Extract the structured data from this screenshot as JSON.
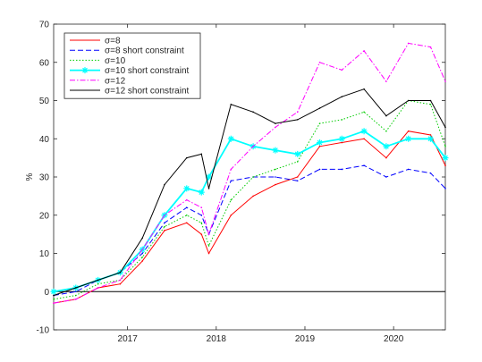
{
  "chart_data": {
    "type": "line",
    "title": "",
    "xlabel": "",
    "ylabel": "%",
    "xlim": [
      "2016-03",
      "2020-08"
    ],
    "ylim": [
      -10,
      70
    ],
    "yticks": [
      "-10",
      "0",
      "10",
      "20",
      "30",
      "40",
      "50",
      "60",
      "70"
    ],
    "xticks": [
      "2017",
      "2018",
      "2019",
      "2020"
    ],
    "grid": false,
    "legend_position": "top-left",
    "x": [
      "2016-03",
      "2016-06",
      "2016-09",
      "2016-12",
      "2017-03",
      "2017-06",
      "2017-09",
      "2017-11",
      "2017-12",
      "2018-03",
      "2018-06",
      "2018-09",
      "2018-12",
      "2019-03",
      "2019-06",
      "2019-09",
      "2019-12",
      "2020-03",
      "2020-06",
      "2020-08"
    ],
    "series": [
      {
        "name": "σ=8",
        "color": "#ff0000",
        "dash": "solid",
        "values": [
          -3,
          -2,
          1,
          2,
          8,
          16,
          18,
          15,
          10,
          20,
          25,
          28,
          30,
          38,
          39,
          40,
          35,
          42,
          41,
          33
        ]
      },
      {
        "name": "σ=8 short constraint",
        "color": "#0000ff",
        "dash": "dashed",
        "values": [
          -1,
          0,
          3,
          5,
          10,
          18,
          22,
          20,
          15,
          29,
          30,
          30,
          29,
          32,
          32,
          33,
          30,
          32,
          31,
          27
        ]
      },
      {
        "name": "σ=10",
        "color": "#00cc00",
        "dash": "dotted",
        "values": [
          -2,
          -1,
          2,
          3,
          9,
          17,
          20,
          18,
          12,
          24,
          30,
          32,
          34,
          44,
          45,
          47,
          42,
          50,
          49,
          38
        ]
      },
      {
        "name": "σ=10 short constraint",
        "color": "#00ffff",
        "dash": "solid-marker",
        "values": [
          0,
          1,
          3,
          5,
          11,
          20,
          27,
          26,
          30,
          40,
          38,
          37,
          36,
          39,
          40,
          42,
          38,
          40,
          40,
          35
        ]
      },
      {
        "name": "σ=12",
        "color": "#ff00ff",
        "dash": "dashdot",
        "values": [
          -3,
          -2,
          1,
          3,
          11,
          20,
          24,
          22,
          15,
          32,
          38,
          43,
          47,
          60,
          58,
          63,
          55,
          65,
          64,
          55
        ]
      },
      {
        "name": "σ=12 short constraint",
        "color": "#000000",
        "dash": "solid",
        "values": [
          -1,
          1,
          3,
          5,
          14,
          28,
          35,
          36,
          27,
          49,
          47,
          44,
          45,
          48,
          51,
          53,
          46,
          50,
          50,
          43
        ]
      }
    ]
  }
}
